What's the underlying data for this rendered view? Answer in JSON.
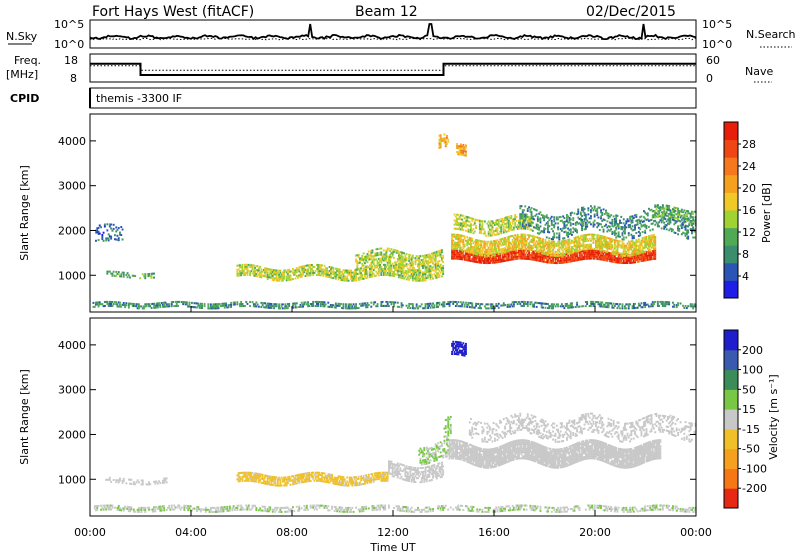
{
  "header": {
    "station": "Fort Hays West (fitACF)",
    "beam": "Beam 12",
    "date": "02/Dec/2015"
  },
  "strips": {
    "nsky_label": "N.Sky",
    "nsearch_label": "N.Search",
    "noise_ticks": [
      "10^5",
      "10^0"
    ],
    "noise_ticks_right": [
      "10^5",
      "10^0"
    ],
    "freq_label_1": "Freq.",
    "freq_label_2": "[MHz]",
    "freq_ticks": [
      "18",
      "8"
    ],
    "nave_label": "Nave",
    "nave_ticks": [
      "60",
      "0"
    ],
    "cpid_label": "CPID",
    "cpid_text": "themis -3300 IF"
  },
  "axes": {
    "xlabel": "Time UT",
    "xticks": [
      "00:00",
      "04:00",
      "08:00",
      "12:00",
      "16:00",
      "20:00",
      "00:00"
    ],
    "ylabel": "Slant Range [km]",
    "yticks": [
      "1000",
      "2000",
      "3000",
      "4000"
    ]
  },
  "power_bar": {
    "label": "Power [dB]",
    "ticks": [
      "4",
      "8",
      "12",
      "16",
      "20",
      "24",
      "28"
    ],
    "colors": [
      "#1e1ee6",
      "#2a55b4",
      "#3c8c6e",
      "#50aa55",
      "#a0d232",
      "#f0c828",
      "#f5a01e",
      "#f5781e",
      "#f04614",
      "#e61e0a"
    ]
  },
  "velocity_bar": {
    "label": "Velocity [m s⁻¹]",
    "ticks": [
      "200",
      "100",
      "50",
      "15",
      "-15",
      "-50",
      "-100",
      "-200"
    ],
    "colors": [
      "#1e1ecd",
      "#3a5ab0",
      "#3c8c5a",
      "#78c846",
      "#c8c8c8",
      "#f0c028",
      "#f5a01e",
      "#f57814",
      "#e62814"
    ]
  },
  "chart_data": {
    "type": "heatmap",
    "title": "Fort Hays West (fitACF)",
    "xlabel": "Time UT",
    "ylabel": "Slant Range [km]",
    "xlim": [
      0,
      24
    ],
    "ylim": [
      180,
      4600
    ],
    "panels": [
      {
        "name": "Power [dB]",
        "clim": [
          0,
          30
        ],
        "bands": [
          {
            "t0": 0.1,
            "t1": 24.0,
            "r": 320,
            "width": 110,
            "density": 0.55,
            "value": 8
          },
          {
            "t0": 0.2,
            "t1": 1.3,
            "r": 1850,
            "width": 380,
            "density": 0.3,
            "value": 6
          },
          {
            "t0": 0.6,
            "t1": 2.6,
            "r": 1000,
            "width": 120,
            "density": 0.4,
            "value": 10
          },
          {
            "t0": 5.8,
            "t1": 14.0,
            "r": 1050,
            "width": 260,
            "density": 0.7,
            "value": 14
          },
          {
            "t0": 10.5,
            "t1": 14.0,
            "r": 1350,
            "width": 350,
            "density": 0.55,
            "value": 14
          },
          {
            "t0": 14.3,
            "t1": 22.4,
            "r": 1400,
            "width": 200,
            "density": 0.92,
            "value": 27
          },
          {
            "t0": 14.3,
            "t1": 22.4,
            "r": 1650,
            "width": 320,
            "density": 0.75,
            "value": 16
          },
          {
            "t0": 14.4,
            "t1": 17.5,
            "r": 2100,
            "width": 320,
            "density": 0.6,
            "value": 14
          },
          {
            "t0": 17.0,
            "t1": 24.0,
            "r": 2150,
            "width": 500,
            "density": 0.35,
            "value": 8
          },
          {
            "t0": 22.3,
            "t1": 24.0,
            "r": 2350,
            "width": 300,
            "density": 0.5,
            "value": 10
          },
          {
            "t0": 13.8,
            "t1": 14.2,
            "r": 3950,
            "width": 300,
            "density": 0.6,
            "value": 18
          },
          {
            "t0": 14.5,
            "t1": 14.9,
            "r": 3750,
            "width": 250,
            "density": 0.7,
            "value": 20
          }
        ]
      },
      {
        "name": "Velocity [m s-1]",
        "clim": [
          -250,
          250
        ],
        "bands": [
          {
            "t0": 0.1,
            "t1": 24.0,
            "r": 330,
            "width": 110,
            "density": 0.5,
            "value": 20
          },
          {
            "t0": 0.6,
            "t1": 3.0,
            "r": 950,
            "width": 120,
            "density": 0.4,
            "value": 0
          },
          {
            "t0": 5.8,
            "t1": 11.8,
            "r": 1000,
            "width": 220,
            "density": 0.75,
            "value": -40
          },
          {
            "t0": 11.8,
            "t1": 14.0,
            "r": 1150,
            "width": 320,
            "density": 0.6,
            "value": 0
          },
          {
            "t0": 13.0,
            "t1": 14.2,
            "r": 1600,
            "width": 400,
            "density": 0.45,
            "value": 30
          },
          {
            "t0": 14.2,
            "t1": 22.6,
            "r": 1550,
            "width": 420,
            "density": 0.92,
            "value": 0
          },
          {
            "t0": 15.0,
            "t1": 24.0,
            "r": 2150,
            "width": 450,
            "density": 0.35,
            "value": 0
          },
          {
            "t0": 14.3,
            "t1": 14.9,
            "r": 3850,
            "width": 300,
            "density": 0.7,
            "value": 220
          },
          {
            "t0": 14.0,
            "t1": 14.3,
            "r": 2000,
            "width": 500,
            "density": 0.55,
            "value": 40
          }
        ]
      }
    ],
    "noise_strip": {
      "series": [
        "N.Sky",
        "N.Search"
      ],
      "ylim": [
        "10^0",
        "10^5"
      ]
    },
    "frequency_strip": {
      "ylim": [
        8,
        18
      ],
      "segments": [
        {
          "t0": 0.0,
          "t1": 2.0,
          "freq": 14.5,
          "nave": 35
        },
        {
          "t0": 2.0,
          "t1": 14.0,
          "freq": 10.5,
          "nave": 25
        },
        {
          "t0": 14.0,
          "t1": 24.0,
          "freq": 14.5,
          "nave": 35
        }
      ]
    },
    "grid": false
  }
}
